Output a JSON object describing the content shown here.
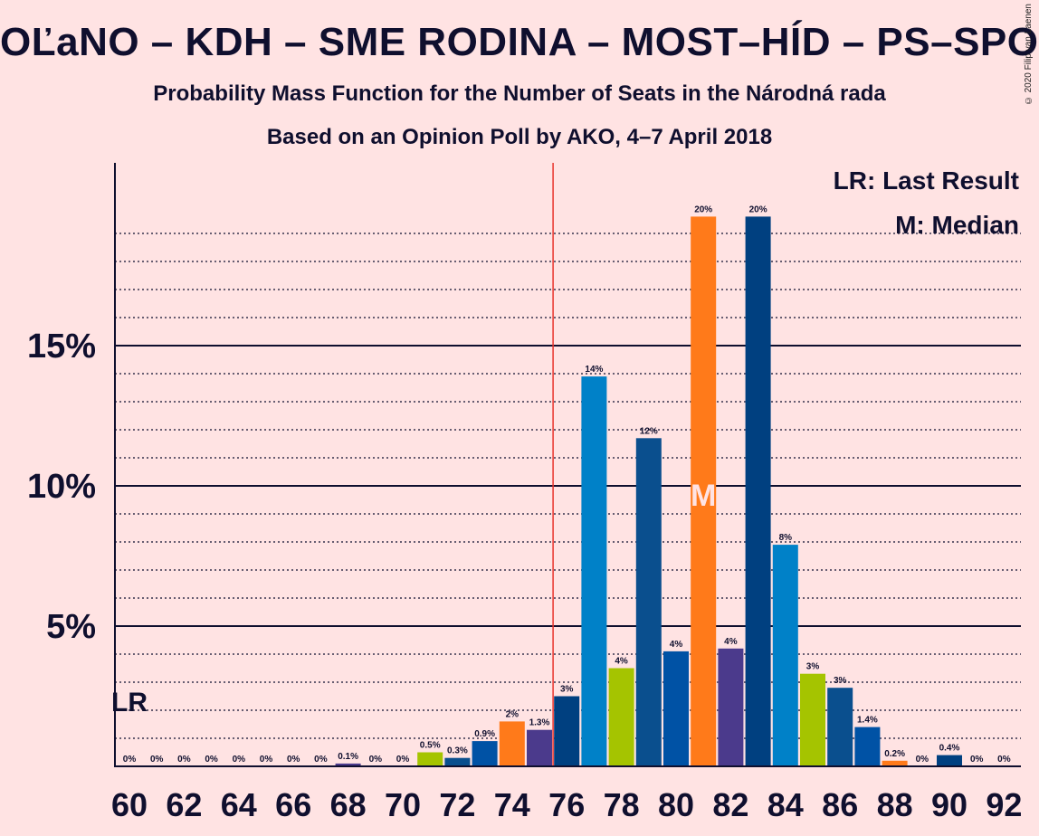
{
  "title": "OĽaNO – KDH – SME RODINA – MOST–HÍD – PS–SPOLU",
  "subtitle1": "Probability Mass Function for the Number of Seats in the Národná rada",
  "subtitle2": "Based on an Opinion Poll by AKO, 4–7 April 2018",
  "copyright": "© 2020 Filip van Laenen",
  "legend": {
    "lr": "LR: Last Result",
    "m": "M: Median"
  },
  "markers": {
    "lr_label": "LR",
    "median_label": "M"
  },
  "colors": {
    "background": "#FFE3E3",
    "majority_line": "#E8332B",
    "text": "#0F0F2E"
  },
  "chart_data": {
    "type": "bar",
    "x_tick_labels": [
      "60",
      "62",
      "64",
      "66",
      "68",
      "70",
      "72",
      "74",
      "76",
      "78",
      "80",
      "82",
      "84",
      "86",
      "88",
      "90",
      "92"
    ],
    "y_tick_labels": [
      "5%",
      "10%",
      "15%"
    ],
    "ylim": [
      0,
      21
    ],
    "majority_line_at": 75.5,
    "last_result_seat": 60,
    "median_seat": 81,
    "bars": [
      {
        "seat": 60,
        "value": 0,
        "label": "0%",
        "color": "#1E3F8F"
      },
      {
        "seat": 61,
        "value": 0,
        "label": "0%",
        "color": "#1E3F8F"
      },
      {
        "seat": 62,
        "value": 0,
        "label": "0%",
        "color": "#1E3F8F"
      },
      {
        "seat": 63,
        "value": 0,
        "label": "0%",
        "color": "#1E3F8F"
      },
      {
        "seat": 64,
        "value": 0,
        "label": "0%",
        "color": "#1E3F8F"
      },
      {
        "seat": 65,
        "value": 0,
        "label": "0%",
        "color": "#1E3F8F"
      },
      {
        "seat": 66,
        "value": 0,
        "label": "0%",
        "color": "#1E3F8F"
      },
      {
        "seat": 67,
        "value": 0,
        "label": "0%",
        "color": "#1E3F8F"
      },
      {
        "seat": 68,
        "value": 0.1,
        "label": "0.1%",
        "color": "#4B3A8C"
      },
      {
        "seat": 69,
        "value": 0,
        "label": "0%",
        "color": "#1E3F8F"
      },
      {
        "seat": 70,
        "value": 0,
        "label": "0%",
        "color": "#1E3F8F"
      },
      {
        "seat": 71,
        "value": 0.5,
        "label": "0.5%",
        "color": "#A5C400"
      },
      {
        "seat": 72,
        "value": 0.3,
        "label": "0.3%",
        "color": "#0A4F8E"
      },
      {
        "seat": 73,
        "value": 0.9,
        "label": "0.9%",
        "color": "#0052A5"
      },
      {
        "seat": 74,
        "value": 1.6,
        "label": "2%",
        "color": "#FF7A1A"
      },
      {
        "seat": 75,
        "value": 1.3,
        "label": "1.3%",
        "color": "#4B3A8C"
      },
      {
        "seat": 76,
        "value": 2.5,
        "label": "3%",
        "color": "#004080"
      },
      {
        "seat": 77,
        "value": 13.9,
        "label": "14%",
        "color": "#0081C8"
      },
      {
        "seat": 78,
        "value": 3.5,
        "label": "4%",
        "color": "#A5C400"
      },
      {
        "seat": 79,
        "value": 11.7,
        "label": "12%",
        "color": "#0A4F8E"
      },
      {
        "seat": 80,
        "value": 4.1,
        "label": "4%",
        "color": "#0052A5"
      },
      {
        "seat": 81,
        "value": 19.6,
        "label": "20%",
        "color": "#FF7A1A"
      },
      {
        "seat": 82,
        "value": 4.2,
        "label": "4%",
        "color": "#4B3A8C"
      },
      {
        "seat": 83,
        "value": 19.6,
        "label": "20%",
        "color": "#004080"
      },
      {
        "seat": 84,
        "value": 7.9,
        "label": "8%",
        "color": "#0081C8"
      },
      {
        "seat": 85,
        "value": 3.3,
        "label": "3%",
        "color": "#A5C400"
      },
      {
        "seat": 86,
        "value": 2.8,
        "label": "3%",
        "color": "#0A4F8E"
      },
      {
        "seat": 87,
        "value": 1.4,
        "label": "1.4%",
        "color": "#0052A5"
      },
      {
        "seat": 88,
        "value": 0.2,
        "label": "0.2%",
        "color": "#FF7A1A"
      },
      {
        "seat": 89,
        "value": 0,
        "label": "0%",
        "color": "#1E3F8F"
      },
      {
        "seat": 90,
        "value": 0.4,
        "label": "0.4%",
        "color": "#004080"
      },
      {
        "seat": 91,
        "value": 0,
        "label": "0%",
        "color": "#1E3F8F"
      },
      {
        "seat": 92,
        "value": 0,
        "label": "0%",
        "color": "#1E3F8F"
      }
    ]
  }
}
